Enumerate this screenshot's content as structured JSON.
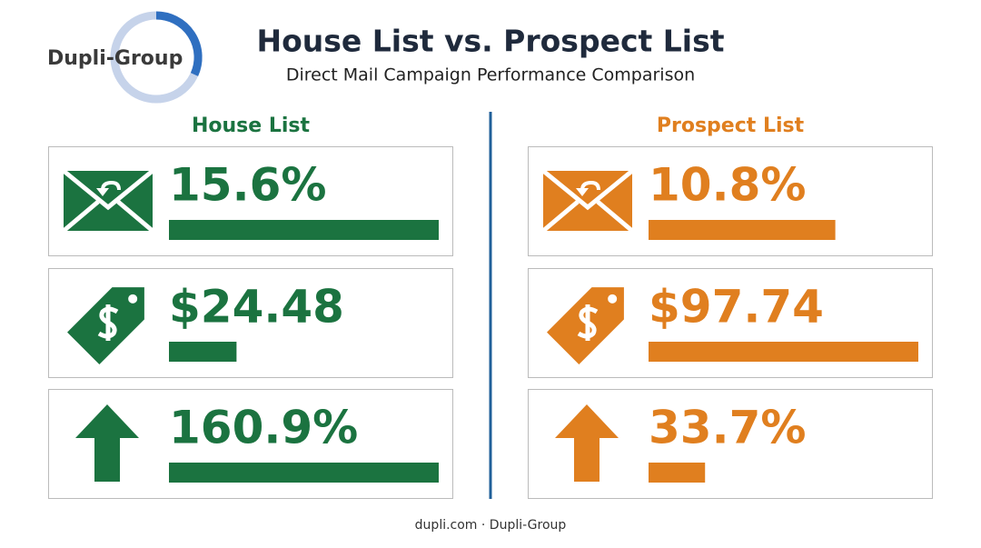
{
  "header": {
    "logo": "Dupli-Group",
    "title": "House List vs. Prospect List",
    "subtitle": "Direct Mail Campaign Performance Comparison"
  },
  "panels": [
    {
      "name": "House List",
      "color": "#1b7340",
      "metrics": [
        {
          "value": 15.6,
          "label": "15.6%"
        },
        {
          "value": 24.48,
          "label": "$24.48"
        },
        {
          "value": 160.9,
          "label": "160.9%"
        }
      ]
    },
    {
      "name": "Prospect List",
      "color": "#e07f1f",
      "metrics": [
        {
          "value": 10.8,
          "label": "10.8%"
        },
        {
          "value": 97.74,
          "label": "$97.74"
        },
        {
          "value": 33.7,
          "label": "33.7%"
        }
      ]
    }
  ],
  "footer": "dupli.com · Dupli-Group"
}
